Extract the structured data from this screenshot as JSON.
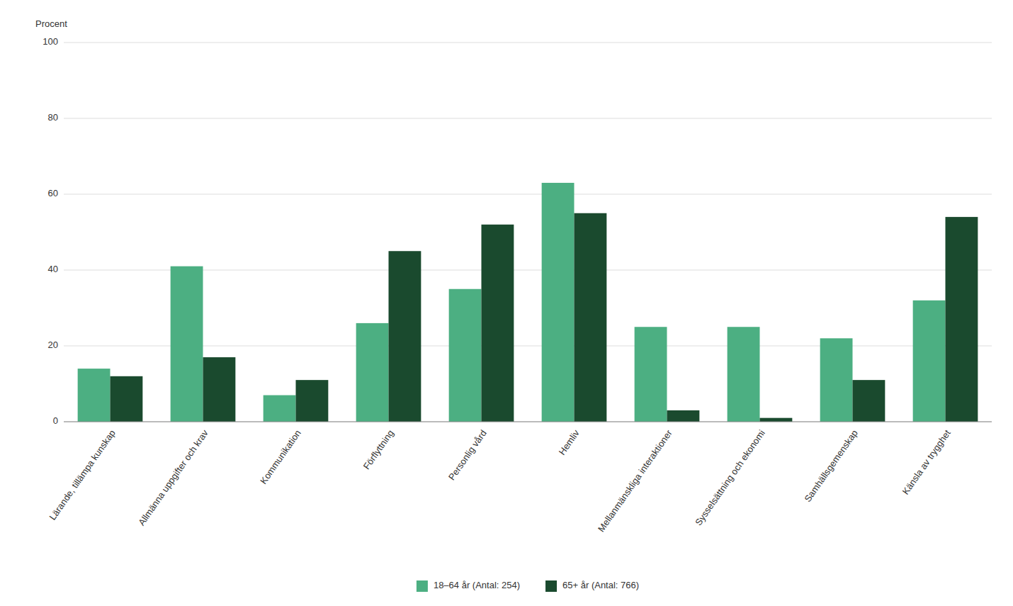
{
  "chart_data": {
    "type": "bar",
    "y_label": "Procent",
    "categories": [
      "Lärande, tillämpa kunskap",
      "Allmänna uppgifter och krav",
      "Kommunikation",
      "Förflyttning",
      "Personlig vård",
      "Hemliv",
      "Mellanmänskliga interaktioner",
      "Sysselsättning och ekonomi",
      "Samhällsgemenskap",
      "Känsla av trygghet"
    ],
    "series": [
      {
        "name": "18–64 år (Antal: 254)",
        "color": "#4caf82",
        "values": [
          14,
          41,
          7,
          26,
          35,
          63,
          25,
          25,
          22,
          32
        ]
      },
      {
        "name": "65+ år (Antal: 766)",
        "color": "#1a4a2e",
        "values": [
          12,
          17,
          11,
          45,
          52,
          55,
          3,
          1,
          11,
          54
        ]
      }
    ],
    "ylim": [
      0,
      100
    ],
    "yticks": [
      0,
      20,
      40,
      60,
      80,
      100
    ],
    "grid": true,
    "legend": "bottom"
  }
}
